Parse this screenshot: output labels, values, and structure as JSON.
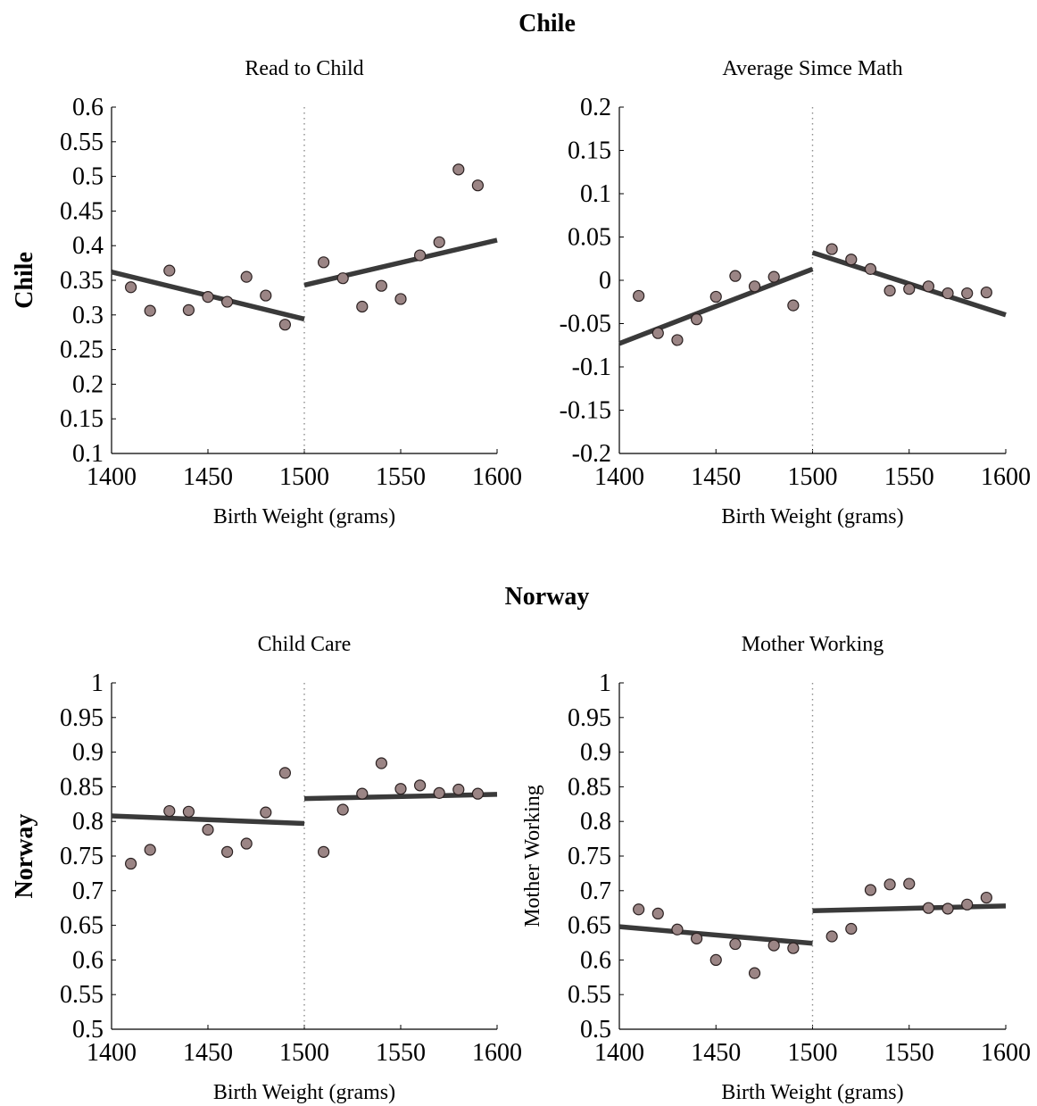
{
  "figure": {
    "row_titles": [
      "Chile",
      "Norway"
    ]
  },
  "chart_data": [
    {
      "type": "scatter",
      "title": "Read to Child",
      "row_label": "Chile",
      "xlabel": "Birth Weight (grams)",
      "ylabel": "",
      "xlim": [
        1400,
        1600
      ],
      "ylim": [
        0.1,
        0.6
      ],
      "xticks": [
        "1400",
        "1450",
        "1500",
        "1550",
        "1600"
      ],
      "yticks": [
        "0.1",
        "0.15",
        "0.2",
        "0.25",
        "0.3",
        "0.35",
        "0.4",
        "0.45",
        "0.5",
        "0.55",
        "0.6"
      ],
      "cutoff": 1500,
      "grid": false,
      "points": {
        "x": [
          1410,
          1420,
          1430,
          1440,
          1450,
          1460,
          1470,
          1480,
          1490,
          1510,
          1520,
          1530,
          1540,
          1550,
          1560,
          1570,
          1580,
          1590
        ],
        "y": [
          0.34,
          0.306,
          0.364,
          0.307,
          0.326,
          0.319,
          0.355,
          0.328,
          0.286,
          0.376,
          0.353,
          0.312,
          0.342,
          0.323,
          0.386,
          0.405,
          0.51,
          0.487
        ]
      },
      "fit_lines": [
        {
          "x": [
            1400,
            1500
          ],
          "y": [
            0.362,
            0.294
          ]
        },
        {
          "x": [
            1500,
            1600
          ],
          "y": [
            0.343,
            0.408
          ]
        }
      ]
    },
    {
      "type": "scatter",
      "title": "Average Simce Math",
      "row_label": "",
      "xlabel": "Birth Weight (grams)",
      "ylabel": "",
      "xlim": [
        1400,
        1600
      ],
      "ylim": [
        -0.2,
        0.2
      ],
      "xticks": [
        "1400",
        "1450",
        "1500",
        "1550",
        "1600"
      ],
      "yticks": [
        "-0.2",
        "-0.15",
        "-0.1",
        "-0.05",
        "0",
        "0.05",
        "0.1",
        "0.15",
        "0.2"
      ],
      "cutoff": 1500,
      "grid": false,
      "points": {
        "x": [
          1410,
          1420,
          1430,
          1440,
          1450,
          1460,
          1470,
          1480,
          1490,
          1510,
          1520,
          1530,
          1540,
          1550,
          1560,
          1570,
          1580,
          1590
        ],
        "y": [
          -0.018,
          -0.061,
          -0.069,
          -0.045,
          -0.019,
          0.005,
          -0.007,
          0.004,
          -0.029,
          0.036,
          0.024,
          0.013,
          -0.012,
          -0.01,
          -0.007,
          -0.015,
          -0.015,
          -0.014
        ]
      },
      "fit_lines": [
        {
          "x": [
            1400,
            1500
          ],
          "y": [
            -0.073,
            0.013
          ]
        },
        {
          "x": [
            1500,
            1600
          ],
          "y": [
            0.032,
            -0.04
          ]
        }
      ]
    },
    {
      "type": "scatter",
      "title": "Child Care",
      "row_label": "Norway",
      "xlabel": "Birth Weight (grams)",
      "ylabel": "",
      "xlim": [
        1400,
        1600
      ],
      "ylim": [
        0.5,
        1.0
      ],
      "xticks": [
        "1400",
        "1450",
        "1500",
        "1550",
        "1600"
      ],
      "yticks": [
        "0.5",
        "0.55",
        "0.6",
        "0.65",
        "0.7",
        "0.75",
        "0.8",
        "0.85",
        "0.9",
        "0.95",
        "1"
      ],
      "cutoff": 1500,
      "grid": false,
      "points": {
        "x": [
          1410,
          1420,
          1430,
          1440,
          1450,
          1460,
          1470,
          1480,
          1490,
          1510,
          1520,
          1530,
          1540,
          1550,
          1560,
          1570,
          1580,
          1590
        ],
        "y": [
          0.739,
          0.759,
          0.815,
          0.814,
          0.788,
          0.756,
          0.768,
          0.813,
          0.87,
          0.756,
          0.817,
          0.84,
          0.884,
          0.847,
          0.852,
          0.841,
          0.846,
          0.84
        ]
      },
      "fit_lines": [
        {
          "x": [
            1400,
            1500
          ],
          "y": [
            0.808,
            0.797
          ]
        },
        {
          "x": [
            1500,
            1600
          ],
          "y": [
            0.833,
            0.839
          ]
        }
      ]
    },
    {
      "type": "scatter",
      "title": "Mother Working",
      "row_label": "",
      "xlabel": "Birth Weight (grams)",
      "ylabel": "Mother Working",
      "xlim": [
        1400,
        1600
      ],
      "ylim": [
        0.5,
        1.0
      ],
      "xticks": [
        "1400",
        "1450",
        "1500",
        "1550",
        "1600"
      ],
      "yticks": [
        "0.5",
        "0.55",
        "0.6",
        "0.65",
        "0.7",
        "0.75",
        "0.8",
        "0.85",
        "0.9",
        "0.95",
        "1"
      ],
      "cutoff": 1500,
      "grid": false,
      "points": {
        "x": [
          1410,
          1420,
          1430,
          1440,
          1450,
          1460,
          1470,
          1480,
          1490,
          1510,
          1520,
          1530,
          1540,
          1550,
          1560,
          1570,
          1580,
          1590
        ],
        "y": [
          0.673,
          0.667,
          0.644,
          0.631,
          0.6,
          0.623,
          0.581,
          0.621,
          0.617,
          0.634,
          0.645,
          0.701,
          0.709,
          0.71,
          0.675,
          0.674,
          0.68,
          0.69
        ]
      },
      "fit_lines": [
        {
          "x": [
            1400,
            1500
          ],
          "y": [
            0.648,
            0.624
          ]
        },
        {
          "x": [
            1500,
            1600
          ],
          "y": [
            0.671,
            0.678
          ]
        }
      ]
    }
  ],
  "style": {
    "marker_fill": "#9b8585",
    "marker_stroke": "#2a2020",
    "fit_line_color": "#3a3a3a",
    "axis_color": "#000000",
    "cutoff_line_color": "#8c8c8c"
  }
}
